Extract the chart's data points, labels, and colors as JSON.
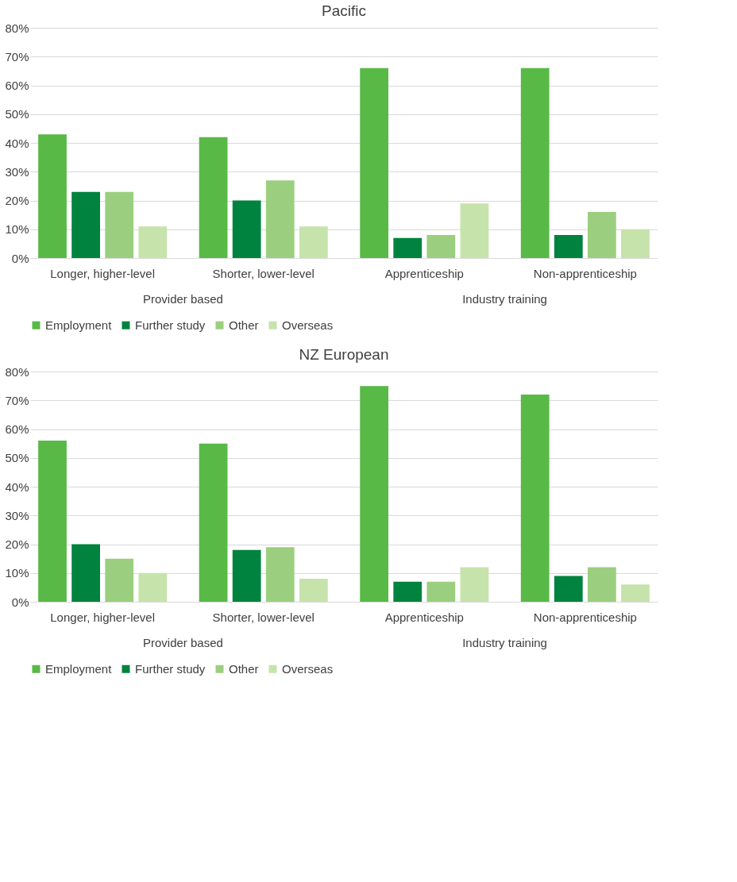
{
  "chart_data": [
    {
      "type": "bar",
      "title": "Pacific",
      "categories": [
        "Longer, higher-level",
        "Shorter, lower-level",
        "Apprenticeship",
        "Non-apprenticeship"
      ],
      "series": [
        {
          "name": "Employment",
          "color": "#58b947",
          "values": [
            43,
            42,
            66,
            66
          ]
        },
        {
          "name": "Further study",
          "color": "#00833e",
          "values": [
            23,
            20,
            7,
            8
          ]
        },
        {
          "name": "Other",
          "color": "#9bcf7f",
          "values": [
            23,
            27,
            8,
            16
          ]
        },
        {
          "name": "Overseas",
          "color": "#c6e3ab",
          "values": [
            11,
            11,
            19,
            10
          ]
        }
      ],
      "ylim": [
        0,
        80
      ],
      "yticks": [
        {
          "value": 0,
          "label": "0%"
        },
        {
          "value": 10,
          "label": "10%"
        },
        {
          "value": 20,
          "label": "20%"
        },
        {
          "value": 30,
          "label": "30%"
        },
        {
          "value": 40,
          "label": "40%"
        },
        {
          "value": 50,
          "label": "50%"
        },
        {
          "value": 60,
          "label": "60%"
        },
        {
          "value": 70,
          "label": "70%"
        },
        {
          "value": 80,
          "label": "80%"
        }
      ],
      "annotations": [
        "Provider based",
        "Industry training"
      ],
      "grid": "y",
      "legend": "bottom"
    },
    {
      "type": "bar",
      "title": "NZ European",
      "categories": [
        "Longer, higher-level",
        "Shorter, lower-level",
        "Apprenticeship",
        "Non-apprenticeship"
      ],
      "series": [
        {
          "name": "Employment",
          "color": "#58b947",
          "values": [
            56,
            55,
            75,
            72
          ]
        },
        {
          "name": "Further study",
          "color": "#00833e",
          "values": [
            20,
            18,
            7,
            9
          ]
        },
        {
          "name": "Other",
          "color": "#9bcf7f",
          "values": [
            15,
            19,
            7,
            12
          ]
        },
        {
          "name": "Overseas",
          "color": "#c6e3ab",
          "values": [
            10,
            8,
            12,
            6
          ]
        }
      ],
      "ylim": [
        0,
        80
      ],
      "yticks": [
        {
          "value": 0,
          "label": "0%"
        },
        {
          "value": 10,
          "label": "10%"
        },
        {
          "value": 20,
          "label": "20%"
        },
        {
          "value": 30,
          "label": "30%"
        },
        {
          "value": 40,
          "label": "40%"
        },
        {
          "value": 50,
          "label": "50%"
        },
        {
          "value": 60,
          "label": "60%"
        },
        {
          "value": 70,
          "label": "70%"
        },
        {
          "value": 80,
          "label": "80%"
        }
      ],
      "annotations": [
        "Provider based",
        "Industry training"
      ],
      "grid": "y",
      "legend": "bottom"
    }
  ]
}
